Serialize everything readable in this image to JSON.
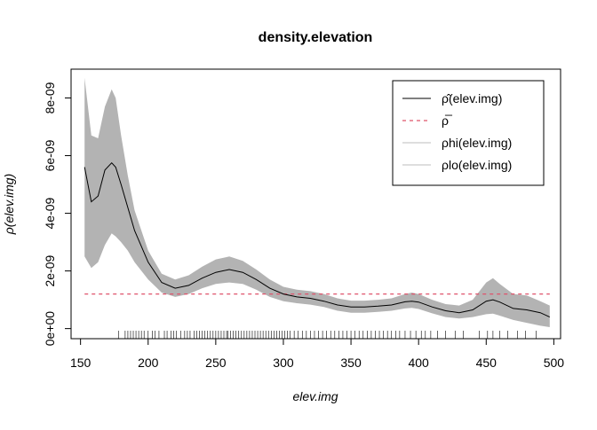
{
  "chart_data": {
    "type": "line",
    "title": "density.elevation",
    "xlabel": "elev.img",
    "ylabel": "ρ(elev.img)",
    "xlim": [
      143,
      505
    ],
    "ylim": [
      -3.5e-10,
      9e-09
    ],
    "x_ticks": [
      150,
      200,
      250,
      300,
      350,
      400,
      450,
      500
    ],
    "x_tick_labels": [
      "150",
      "200",
      "250",
      "300",
      "350",
      "400",
      "450",
      "500"
    ],
    "y_ticks": [
      0,
      2e-09,
      4e-09,
      6e-09,
      8e-09
    ],
    "y_tick_labels": [
      "0e+00",
      "2e-09",
      "4e-09",
      "6e-09",
      "8e-09"
    ],
    "grid": false,
    "legend_position": "top-right",
    "legend": [
      {
        "label": "ρ̂(elev.img)",
        "style": "solid",
        "color": "#000000"
      },
      {
        "label": "ρ̅",
        "style": "dashed",
        "color": "#df536b"
      },
      {
        "label": "ρhi(elev.img)",
        "style": "solid",
        "color": "#bebebe"
      },
      {
        "label": "ρlo(elev.img)",
        "style": "solid",
        "color": "#bebebe"
      }
    ],
    "series": [
      {
        "name": "ρ̂(elev.img)",
        "x": [
          153,
          158,
          163,
          168,
          173,
          176,
          180,
          185,
          190,
          200,
          210,
          220,
          230,
          240,
          250,
          260,
          270,
          280,
          290,
          300,
          310,
          320,
          330,
          340,
          350,
          360,
          370,
          380,
          390,
          395,
          400,
          410,
          420,
          430,
          440,
          450,
          455,
          460,
          470,
          480,
          490,
          497
        ],
        "y": [
          5.6e-09,
          4.4e-09,
          4.6e-09,
          5.5e-09,
          5.75e-09,
          5.6e-09,
          5e-09,
          4.2e-09,
          3.4e-09,
          2.3e-09,
          1.6e-09,
          1.4e-09,
          1.5e-09,
          1.75e-09,
          1.95e-09,
          2.05e-09,
          1.95e-09,
          1.7e-09,
          1.4e-09,
          1.2e-09,
          1.1e-09,
          1.05e-09,
          9.5e-10,
          8.2e-10,
          7.5e-10,
          7.5e-10,
          7.8e-10,
          8.2e-10,
          9.3e-10,
          9.5e-10,
          9.2e-10,
          7.5e-10,
          6.2e-10,
          5.5e-10,
          6.5e-10,
          9.5e-10,
          1e-09,
          9.2e-10,
          7e-10,
          6.5e-10,
          5.5e-10,
          4e-10
        ]
      },
      {
        "name": "ρhi(elev.img)",
        "x": [
          153,
          158,
          163,
          168,
          173,
          176,
          180,
          185,
          190,
          200,
          210,
          220,
          230,
          240,
          250,
          260,
          270,
          280,
          290,
          300,
          310,
          320,
          330,
          340,
          350,
          360,
          370,
          380,
          390,
          395,
          400,
          410,
          420,
          430,
          440,
          450,
          455,
          460,
          470,
          480,
          490,
          497
        ],
        "y": [
          8.7e-09,
          6.7e-09,
          6.6e-09,
          7.7e-09,
          8.3e-09,
          8e-09,
          6.7e-09,
          5.3e-09,
          4.1e-09,
          2.7e-09,
          1.9e-09,
          1.7e-09,
          1.85e-09,
          2.15e-09,
          2.4e-09,
          2.5e-09,
          2.35e-09,
          2.05e-09,
          1.7e-09,
          1.45e-09,
          1.35e-09,
          1.3e-09,
          1.2e-09,
          1.05e-09,
          9.7e-10,
          9.7e-10,
          1e-09,
          1.05e-09,
          1.2e-09,
          1.25e-09,
          1.2e-09,
          1e-09,
          8.5e-10,
          8e-10,
          1e-09,
          1.6e-09,
          1.75e-09,
          1.55e-09,
          1.2e-09,
          1.15e-09,
          9.5e-10,
          8e-10
        ]
      },
      {
        "name": "ρlo(elev.img)",
        "x": [
          153,
          158,
          163,
          168,
          173,
          176,
          180,
          185,
          190,
          200,
          210,
          220,
          230,
          240,
          250,
          260,
          270,
          280,
          290,
          300,
          310,
          320,
          330,
          340,
          350,
          360,
          370,
          380,
          390,
          395,
          400,
          410,
          420,
          430,
          440,
          450,
          455,
          460,
          470,
          480,
          490,
          497
        ],
        "y": [
          2.5e-09,
          2.1e-09,
          2.3e-09,
          2.9e-09,
          3.3e-09,
          3.2e-09,
          3e-09,
          2.7e-09,
          2.3e-09,
          1.7e-09,
          1.25e-09,
          1.1e-09,
          1.2e-09,
          1.4e-09,
          1.55e-09,
          1.6e-09,
          1.55e-09,
          1.35e-09,
          1.1e-09,
          9.5e-10,
          8.8e-10,
          8.3e-10,
          7.5e-10,
          6.2e-10,
          5.5e-10,
          5.5e-10,
          5.8e-10,
          6.2e-10,
          7e-10,
          7.2e-10,
          6.8e-10,
          5.3e-10,
          4e-10,
          3.5e-10,
          4e-10,
          5e-10,
          5.2e-10,
          4.5e-10,
          3e-10,
          2e-10,
          1e-10,
          5e-11
        ]
      }
    ],
    "reference_line": {
      "name": "ρ̅",
      "y": 1.2e-09,
      "x_range": [
        153,
        497
      ]
    },
    "rug": [
      178,
      183,
      185,
      187,
      189,
      191,
      193,
      195,
      197,
      200,
      203,
      205,
      208,
      212,
      214,
      217,
      219,
      221,
      224,
      227,
      229,
      231,
      234,
      236,
      238,
      240,
      242,
      244,
      246,
      248,
      250,
      252,
      254,
      256,
      258,
      259,
      261,
      263,
      265,
      267,
      269,
      271,
      273,
      275,
      277,
      279,
      281,
      283,
      285,
      287,
      289,
      291,
      293,
      295,
      297,
      299,
      301,
      303,
      305,
      308,
      311,
      314,
      317,
      320,
      323,
      326,
      329,
      332,
      335,
      338,
      341,
      344,
      347,
      350,
      353,
      356,
      359,
      362,
      365,
      368,
      371,
      374,
      377,
      380,
      383,
      386,
      390,
      394,
      398,
      402,
      405,
      409,
      414,
      420,
      427,
      433,
      445,
      451,
      455,
      460,
      466,
      473,
      479,
      487
    ]
  }
}
